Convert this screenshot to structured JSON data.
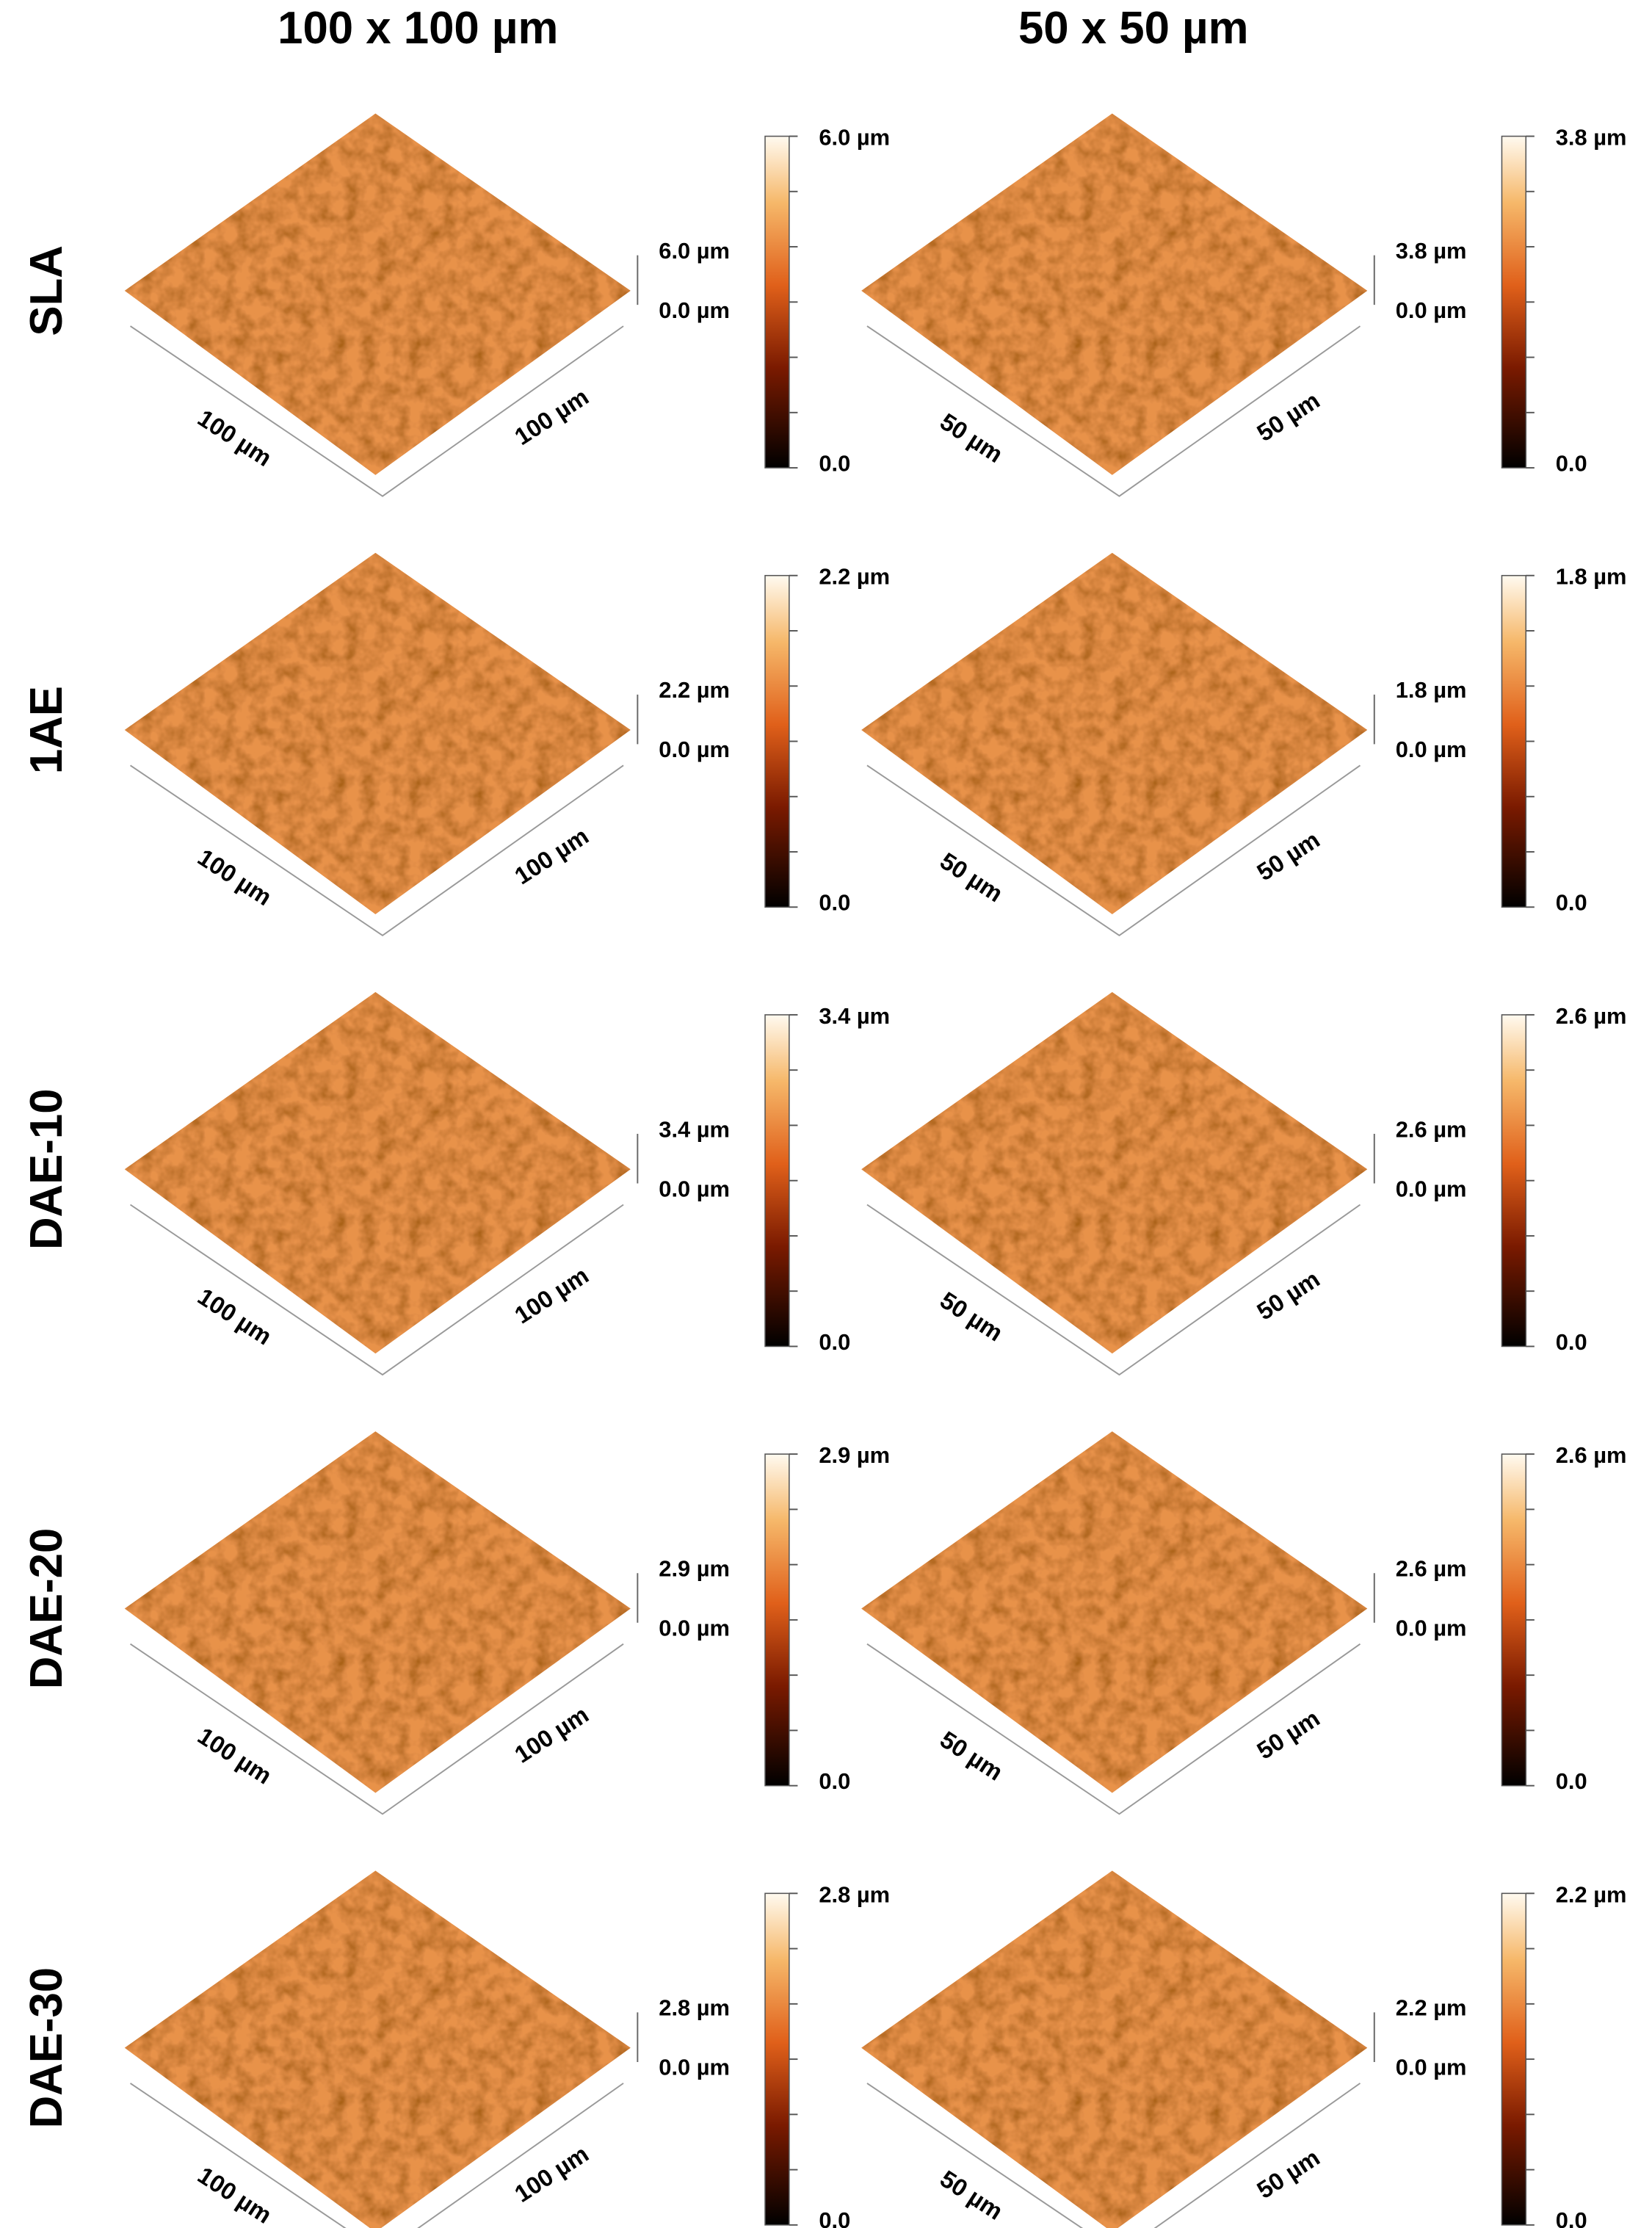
{
  "columns": [
    "100 x 100 µm",
    "50 x 50 µm"
  ],
  "rows": [
    {
      "label": "SLA",
      "panels": [
        {
          "x_label": "100 µm",
          "y_label": "100 µm",
          "z_top": "6.0 µm",
          "z_bottom": "0.0 µm",
          "colorbar_max": "6.0 µm",
          "colorbar_min": "0.0"
        },
        {
          "x_label": "50 µm",
          "y_label": "50 µm",
          "z_top": "3.8 µm",
          "z_bottom": "0.0 µm",
          "colorbar_max": "3.8 µm",
          "colorbar_min": "0.0"
        }
      ]
    },
    {
      "label": "1AE",
      "panels": [
        {
          "x_label": "100 µm",
          "y_label": "100 µm",
          "z_top": "2.2 µm",
          "z_bottom": "0.0 µm",
          "colorbar_max": "2.2 µm",
          "colorbar_min": "0.0"
        },
        {
          "x_label": "50 µm",
          "y_label": "50 µm",
          "z_top": "1.8 µm",
          "z_bottom": "0.0 µm",
          "colorbar_max": "1.8 µm",
          "colorbar_min": "0.0"
        }
      ]
    },
    {
      "label": "DAE-10",
      "panels": [
        {
          "x_label": "100 µm",
          "y_label": "100 µm",
          "z_top": "3.4 µm",
          "z_bottom": "0.0 µm",
          "colorbar_max": "3.4 µm",
          "colorbar_min": "0.0"
        },
        {
          "x_label": "50 µm",
          "y_label": "50 µm",
          "z_top": "2.6 µm",
          "z_bottom": "0.0 µm",
          "colorbar_max": "2.6 µm",
          "colorbar_min": "0.0"
        }
      ]
    },
    {
      "label": "DAE-20",
      "panels": [
        {
          "x_label": "100 µm",
          "y_label": "100 µm",
          "z_top": "2.9 µm",
          "z_bottom": "0.0 µm",
          "colorbar_max": "2.9 µm",
          "colorbar_min": "0.0"
        },
        {
          "x_label": "50 µm",
          "y_label": "50 µm",
          "z_top": "2.6 µm",
          "z_bottom": "0.0 µm",
          "colorbar_max": "2.6 µm",
          "colorbar_min": "0.0"
        }
      ]
    },
    {
      "label": "DAE-30",
      "panels": [
        {
          "x_label": "100 µm",
          "y_label": "100 µm",
          "z_top": "2.8 µm",
          "z_bottom": "0.0 µm",
          "colorbar_max": "2.8 µm",
          "colorbar_min": "0.0"
        },
        {
          "x_label": "50 µm",
          "y_label": "50 µm",
          "z_top": "2.2 µm",
          "z_bottom": "0.0 µm",
          "colorbar_max": "2.2 µm",
          "colorbar_min": "0.0"
        }
      ]
    }
  ]
}
